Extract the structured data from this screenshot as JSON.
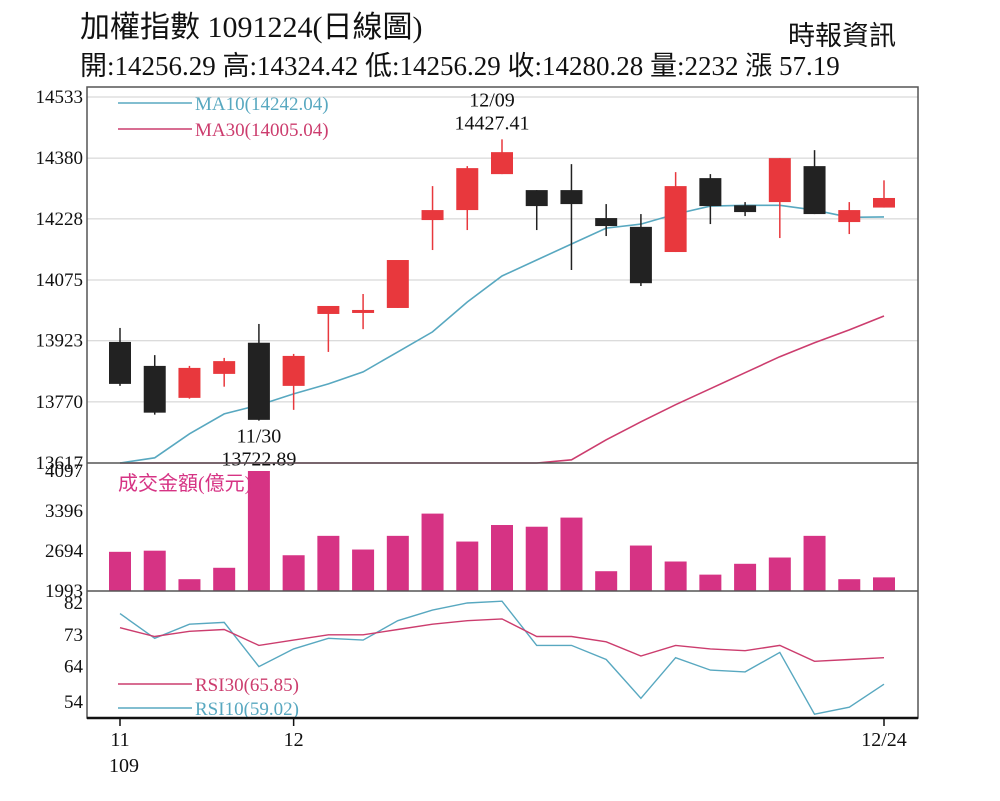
{
  "header": {
    "title": "加權指數 1091224(日線圖)",
    "stats": "開:14256.29 高:14324.42 低:14256.29 收:14280.28 量:2232 漲 57.19",
    "source": "時報資訊"
  },
  "colors": {
    "up": "#e8383d",
    "down": "#222222",
    "volume": "#d63384",
    "ma10": "#58a8c0",
    "ma30": "#cc3d6e",
    "grid": "#cfcfcf",
    "frame": "#555555"
  },
  "chart_data": [
    {
      "type": "candlestick",
      "title": "加權指數 1091224(日線圖)",
      "ylim": [
        13617,
        14533
      ],
      "y_ticks": [
        "14533",
        "14380",
        "14228",
        "14075",
        "13923",
        "13770",
        "13617"
      ],
      "legend": [
        {
          "name": "MA10(14242.04)",
          "color": "#58a8c0"
        },
        {
          "name": "MA30(14005.04)",
          "color": "#cc3d6e"
        }
      ],
      "annotations": [
        {
          "date_label": "12/09",
          "value_label": "14427.41",
          "index": 11
        },
        {
          "date_label": "11/30",
          "value_label": "13722.89",
          "index": 4
        }
      ],
      "candles": [
        {
          "open": 13920,
          "high": 13955,
          "low": 13810,
          "close": 13815
        },
        {
          "open": 13860,
          "high": 13887,
          "low": 13738,
          "close": 13743
        },
        {
          "open": 13780,
          "high": 13860,
          "low": 13778,
          "close": 13855
        },
        {
          "open": 13840,
          "high": 13880,
          "low": 13808,
          "close": 13872
        },
        {
          "open": 13918,
          "high": 13965,
          "low": 13723,
          "close": 13725
        },
        {
          "open": 13810,
          "high": 13890,
          "low": 13750,
          "close": 13885
        },
        {
          "open": 13990,
          "high": 14005,
          "low": 13895,
          "close": 14010
        },
        {
          "open": 14000,
          "high": 14040,
          "low": 13952,
          "close": 14000
        },
        {
          "open": 14005,
          "high": 14120,
          "low": 14005,
          "close": 14125
        },
        {
          "open": 14225,
          "high": 14310,
          "low": 14150,
          "close": 14250
        },
        {
          "open": 14250,
          "high": 14360,
          "low": 14200,
          "close": 14355
        },
        {
          "open": 14340,
          "high": 14427,
          "low": 14340,
          "close": 14395
        },
        {
          "open": 14300,
          "high": 14300,
          "low": 14200,
          "close": 14260
        },
        {
          "open": 14300,
          "high": 14365,
          "low": 14100,
          "close": 14265
        },
        {
          "open": 14230,
          "high": 14265,
          "low": 14185,
          "close": 14210
        },
        {
          "open": 14208,
          "high": 14240,
          "low": 14060,
          "close": 14067
        },
        {
          "open": 14145,
          "high": 14345,
          "low": 14145,
          "close": 14310
        },
        {
          "open": 14330,
          "high": 14340,
          "low": 14215,
          "close": 14260
        },
        {
          "open": 14262,
          "high": 14270,
          "low": 14235,
          "close": 14245
        },
        {
          "open": 14270,
          "high": 14380,
          "low": 14180,
          "close": 14380
        },
        {
          "open": 14360,
          "high": 14400,
          "low": 14240,
          "close": 14240
        },
        {
          "open": 14220,
          "high": 14270,
          "low": 14190,
          "close": 14250
        },
        {
          "open": 14256.29,
          "high": 14324.42,
          "low": 14256.29,
          "close": 14280.28
        }
      ],
      "ma10": [
        13617,
        13630,
        13690,
        13740,
        13762,
        13790,
        13815,
        13845,
        13895,
        13945,
        14020,
        14085,
        14125,
        14165,
        14205,
        14215,
        14240,
        14260,
        14262,
        14262,
        14250,
        14232,
        14233
      ],
      "ma30": [
        13617,
        13617,
        13617,
        13617,
        13617,
        13617,
        13617,
        13617,
        13617,
        13617,
        13617,
        13617,
        13617,
        13625,
        13675,
        13720,
        13763,
        13803,
        13843,
        13883,
        13918,
        13950,
        13985
      ]
    },
    {
      "type": "bar",
      "title": "成交金額(億元)",
      "ylim": [
        1993,
        4097
      ],
      "y_ticks": [
        "4097",
        "3396",
        "2694",
        "1993"
      ],
      "values": [
        2680,
        2700,
        2200,
        2400,
        4097,
        2620,
        2960,
        2720,
        2960,
        3350,
        2860,
        3150,
        3120,
        3280,
        2340,
        2790,
        2510,
        2280,
        2470,
        2580,
        2960,
        2200,
        2232
      ]
    },
    {
      "type": "line",
      "ylim": [
        50,
        82
      ],
      "y_ticks": [
        "82",
        "73",
        "64",
        "54"
      ],
      "series": [
        {
          "name": "RSI10(59.02)",
          "color": "#58a8c0",
          "values": [
            79,
            72,
            76,
            76.5,
            64,
            69,
            72,
            71.5,
            77,
            80,
            82,
            82.5,
            70,
            70,
            66,
            55,
            66.5,
            63,
            62.5,
            68,
            50.5,
            52.5,
            59
          ]
        },
        {
          "name": "RSI30(65.85)",
          "color": "#cc3d6e",
          "values": [
            75,
            72.5,
            74,
            74.5,
            70,
            71.5,
            73,
            73,
            74.5,
            76,
            77,
            77.5,
            72.5,
            72.5,
            71,
            67,
            70,
            69,
            68.5,
            70,
            65.5,
            66,
            66.5
          ]
        }
      ],
      "x_tick_labels": [
        {
          "label": "11",
          "sub": "109",
          "index": 0
        },
        {
          "label": "12",
          "index": 5
        },
        {
          "label": "12/24",
          "index": 22
        }
      ]
    }
  ]
}
